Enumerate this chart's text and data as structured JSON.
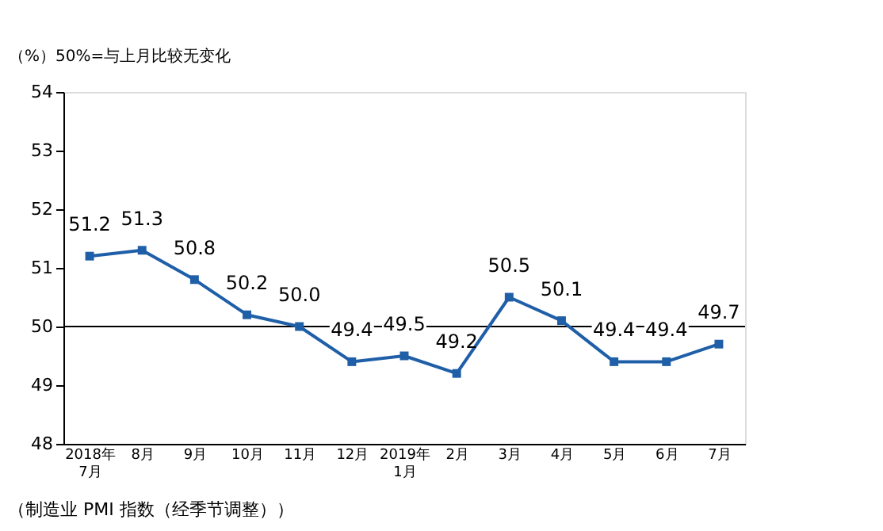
{
  "chart_data": {
    "type": "line",
    "ylabel": "（%）50%=与上月比较无变化",
    "categories": [
      "2018年\n7月",
      "8月",
      "9月",
      "10月",
      "11月",
      "12月",
      "2019年\n1月",
      "2月",
      "3月",
      "4月",
      "5月",
      "6月",
      "7月"
    ],
    "series": [
      {
        "color": "#1f5fa8",
        "values": [
          51.2,
          51.3,
          50.8,
          50.2,
          50.0,
          49.4,
          49.5,
          49.2,
          50.5,
          50.1,
          49.4,
          49.4,
          49.7
        ],
        "value_labels": [
          "51.2",
          "51.3",
          "50.8",
          "50.2",
          "50.0",
          "49.4",
          "49.5",
          "49.2",
          "50.5",
          "50.1",
          "49.4",
          "49.4",
          "49.7"
        ]
      }
    ],
    "ylim": [
      48,
      54
    ],
    "yticks": [
      48,
      49,
      50,
      51,
      52,
      53,
      54
    ],
    "ref_lines": [
      {
        "axis": "y",
        "value": 50,
        "color": "#000000"
      }
    ],
    "data_labels": true,
    "marker": "square",
    "grid": false,
    "annotations": [
      "（制造业 PMI 指数（经季节调整））"
    ]
  }
}
